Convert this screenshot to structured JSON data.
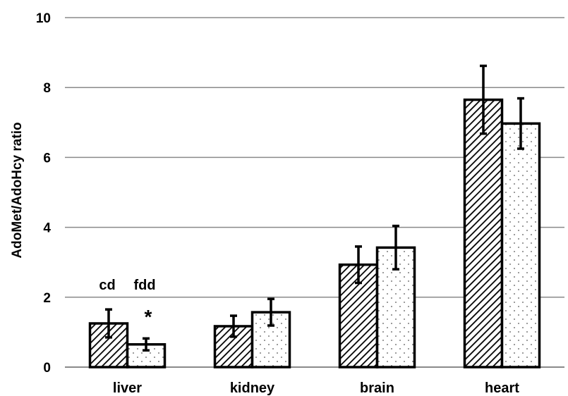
{
  "chart_data": {
    "type": "bar",
    "title": "",
    "xlabel": "",
    "ylabel": "AdoMet/AdoHcy ratio",
    "ylim": [
      0,
      10
    ],
    "yticks": [
      0,
      2,
      4,
      6,
      8,
      10
    ],
    "grid": true,
    "categories": [
      "liver",
      "kidney",
      "brain",
      "heart"
    ],
    "series": [
      {
        "pattern": "diagonal-hatch",
        "values": [
          1.25,
          1.17,
          2.93,
          7.65
        ],
        "errors": [
          0.4,
          0.3,
          0.52,
          0.97
        ]
      },
      {
        "pattern": "dots",
        "values": [
          0.65,
          1.57,
          3.42,
          6.97
        ],
        "errors": [
          0.17,
          0.38,
          0.62,
          0.72
        ]
      }
    ],
    "annotations": [
      {
        "text": "cd",
        "category": "liver",
        "series": 0
      },
      {
        "text": "fdd",
        "category": "liver",
        "series": 1
      },
      {
        "text": "*",
        "category": "liver",
        "series": 1
      }
    ]
  }
}
